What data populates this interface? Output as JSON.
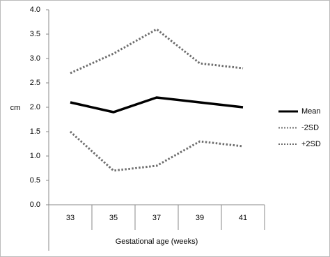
{
  "chart_data": {
    "type": "line",
    "y_label": "cm",
    "x_label": "Gestational age (weeks)",
    "categories": [
      "33",
      "35",
      "37",
      "39",
      "41"
    ],
    "series": [
      {
        "name": "Mean",
        "color": "#000000",
        "dash": false,
        "values": [
          2.1,
          1.9,
          2.2,
          2.1,
          2.0
        ]
      },
      {
        "name": "-2SD",
        "color": "#6e6e6e",
        "dash": true,
        "values": [
          1.5,
          0.7,
          0.8,
          1.3,
          1.2
        ]
      },
      {
        "name": "+2SD",
        "color": "#6e6e6e",
        "dash": true,
        "values": [
          2.7,
          3.1,
          3.6,
          2.9,
          2.8
        ]
      }
    ],
    "ylim": [
      0,
      4
    ],
    "yticks": [
      {
        "value": 0,
        "label": "0.0"
      },
      {
        "value": 0.5,
        "label": "0.5"
      },
      {
        "value": 1,
        "label": "1.0"
      },
      {
        "value": 1.5,
        "label": "1.5"
      },
      {
        "value": 2,
        "label": "2.0"
      },
      {
        "value": 2.5,
        "label": "2.5"
      },
      {
        "value": 3,
        "label": "3.0"
      },
      {
        "value": 3.5,
        "label": "3.5"
      },
      {
        "value": 4,
        "label": "4.0"
      }
    ],
    "legend": "right"
  }
}
